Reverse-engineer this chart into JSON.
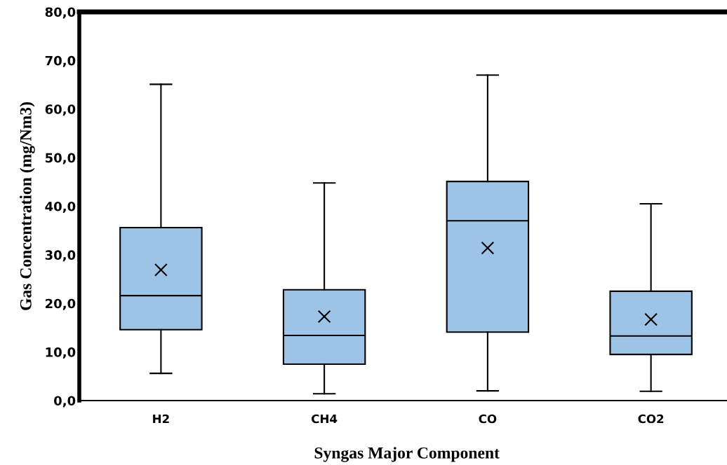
{
  "chart_data": {
    "type": "box",
    "xlabel": "Syngas Major Component",
    "ylabel": "Gas Concentration (mg/Nm3)",
    "categories": [
      "H2",
      "CH4",
      "CO",
      "CO2"
    ],
    "boxes": [
      {
        "low": 5.6,
        "q1": 14.6,
        "median": 21.6,
        "q3": 35.6,
        "high": 65.1,
        "mean": 26.9
      },
      {
        "low": 1.4,
        "q1": 7.5,
        "median": 13.4,
        "q3": 22.8,
        "high": 44.8,
        "mean": 17.3
      },
      {
        "low": 2.0,
        "q1": 14.1,
        "median": 37.0,
        "q3": 45.1,
        "high": 67.0,
        "mean": 31.4
      },
      {
        "low": 1.9,
        "q1": 9.5,
        "median": 13.3,
        "q3": 22.5,
        "high": 40.5,
        "mean": 16.7
      }
    ],
    "color": "#9dc3e6",
    "ylim": [
      0,
      80
    ],
    "yticks": [
      {
        "value": 0,
        "label": "0,0"
      },
      {
        "value": 10,
        "label": "10,0"
      },
      {
        "value": 20,
        "label": "20,0"
      },
      {
        "value": 30,
        "label": "30,0"
      },
      {
        "value": 40,
        "label": "40,0"
      },
      {
        "value": 50,
        "label": "50,0"
      },
      {
        "value": 60,
        "label": "60,0"
      },
      {
        "value": 70,
        "label": "70,0"
      },
      {
        "value": 80,
        "label": "80,0"
      }
    ],
    "grid": false,
    "legend": false,
    "marker": "cross"
  }
}
